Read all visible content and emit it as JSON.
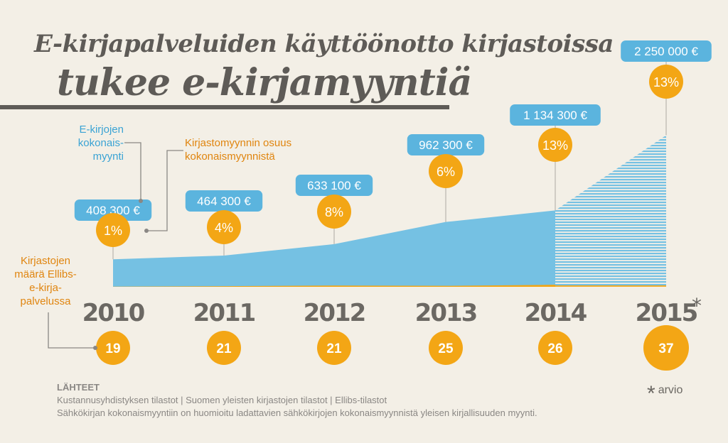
{
  "title": {
    "line1": "E-kirjapalveluiden käyttöönotto kirjastoissa",
    "line2": "tukee e-kirjamyyntiä"
  },
  "labels": {
    "sales": "E-kirjojen\nkokonais-\nmyynti",
    "share": "Kirjastomyynnin osuus\nkokonaismyynnistä",
    "libraries": "Kirjastojen\nmäärä Ellibs-\ne-kirja-\npalvelussa"
  },
  "footnote": {
    "star": "*",
    "text": "arvio"
  },
  "sources": {
    "heading": "LÄHTEET",
    "line1": "Kustannusyhdistyksen tilastot | Suomen yleisten kirjastojen tilastot | Ellibs-tilastot",
    "line2": "Sähkökirjan kokonaismyyntiin on huomioitu ladattavien sähkökirjojen kokonaismyynnistä yleisen kirjallisuuden myynti."
  },
  "colors": {
    "blue": "#75c1e3",
    "blue_label": "#5bb4de",
    "orange": "#f3a615",
    "dark": "#6b6863",
    "background": "#f3efe6"
  },
  "chart_data": {
    "type": "area",
    "x": [
      "2010",
      "2011",
      "2012",
      "2013",
      "2014",
      "2015"
    ],
    "x_display": [
      "2010",
      "2011",
      "2012",
      "2013",
      "2014",
      "2015*"
    ],
    "estimated_from": "2015",
    "series": [
      {
        "name": "E-kirjojen kokonaismyynti",
        "values": [
          408300,
          464300,
          633100,
          962300,
          1134300,
          2250000
        ],
        "labels": [
          "408 300 €",
          "464 300 €",
          "633 100 €",
          "962 300 €",
          "1 134 300 €",
          "2 250 000 €"
        ],
        "color": "#75c1e3"
      },
      {
        "name": "Kirjastomyynnin osuus kokonaismyynnistä",
        "values": [
          1,
          4,
          8,
          6,
          13,
          13
        ],
        "labels": [
          "1%",
          "4%",
          "8%",
          "6%",
          "13%",
          "13%"
        ],
        "unit": "%",
        "color": "#f3a615"
      },
      {
        "name": "Kirjastojen määrä Ellibs-e-kirjapalvelussa",
        "values": [
          19,
          21,
          21,
          25,
          26,
          37
        ],
        "labels": [
          "19",
          "21",
          "21",
          "25",
          "26",
          "37"
        ],
        "color": "#f3a615"
      }
    ]
  }
}
